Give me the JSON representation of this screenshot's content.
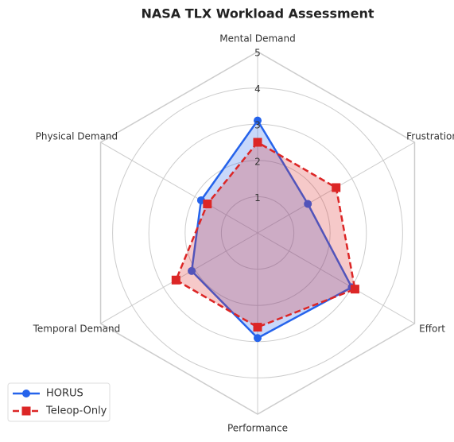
{
  "chart_data": {
    "type": "radar",
    "title": "NASA TLX Workload Assessment",
    "categories": [
      "Mental Demand",
      "Physical Demand",
      "Temporal Demand",
      "Performance",
      "Effort",
      "Frustration"
    ],
    "ylim": [
      0,
      5
    ],
    "yticks": [
      1,
      2,
      3,
      4,
      5
    ],
    "grid": true,
    "legend": "lower left",
    "series": [
      {
        "name": "HORUS",
        "color": "#2563eb",
        "linestyle": "solid",
        "marker": "circle",
        "values": [
          3.1,
          1.8,
          2.1,
          2.9,
          3.0,
          1.6
        ]
      },
      {
        "name": "Teleop-Only",
        "color": "#dc2626",
        "linestyle": "dashed",
        "marker": "square",
        "values": [
          2.5,
          1.6,
          2.6,
          2.6,
          3.1,
          2.5
        ]
      }
    ]
  }
}
